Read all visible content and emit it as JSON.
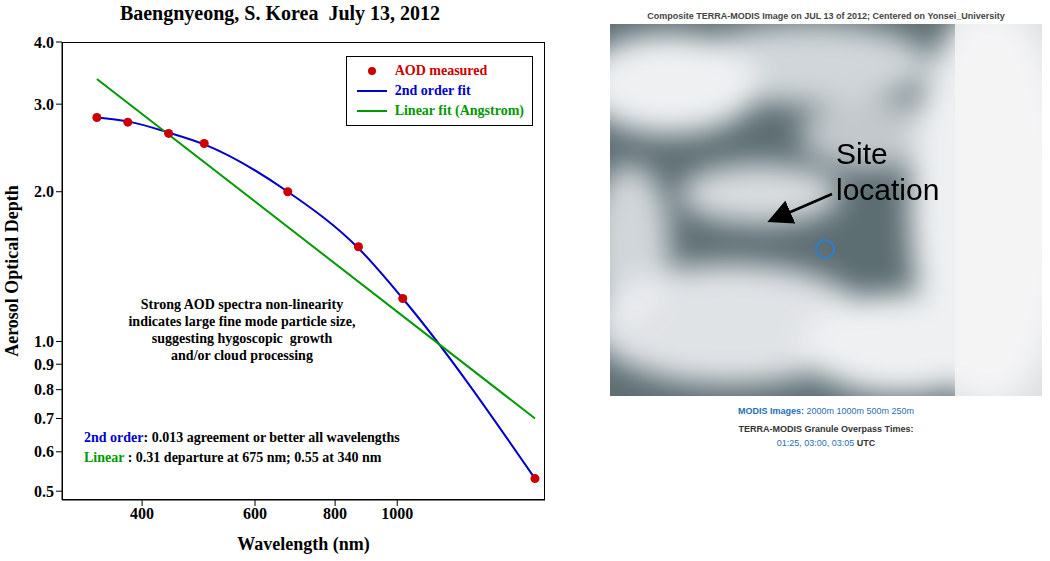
{
  "chart_data": {
    "type": "line",
    "title": "Baengnyeong, S. Korea  July 13, 2012",
    "x_label": "Wavelength (nm)",
    "y_label": "Aerosol Optical Depth",
    "log": true,
    "grid": false,
    "legend": "upper right",
    "x": [
      340,
      380,
      440,
      500,
      675,
      870,
      1020,
      1640
    ],
    "series": [
      {
        "name": "AOD measured",
        "type": "scatter",
        "color": "#cc0000",
        "marker": "circle",
        "values": [
          2.82,
          2.76,
          2.62,
          2.5,
          2.0,
          1.55,
          1.22,
          0.53
        ]
      },
      {
        "name": "2nd order fit",
        "type": "line",
        "color": "#0000cc",
        "marker": "none",
        "line_style": "smooth",
        "values": [
          2.82,
          2.77,
          2.63,
          2.49,
          2.0,
          1.54,
          1.22,
          0.53
        ]
      },
      {
        "name": "Linear fit (Angstrom)",
        "type": "line",
        "color": "#009900",
        "marker": "none",
        "line_style": "straight",
        "values": [
          3.37,
          null,
          null,
          null,
          null,
          null,
          null,
          0.7
        ]
      }
    ],
    "xlim": [
      300,
      1700
    ],
    "xticks": [
      400,
      600,
      800,
      1000
    ],
    "ylim": [
      0.48,
      4
    ],
    "yticks": [
      0.5,
      0.6,
      0.7,
      0.8,
      0.9,
      {
        "value": 1,
        "label": "1.0"
      },
      {
        "value": 2,
        "label": "2.0"
      },
      {
        "value": 3,
        "label": "3.0"
      },
      {
        "value": 4,
        "label": "4.0"
      }
    ],
    "annotations": {
      "note_lines": [
        "Strong AOD spectra non-linearity",
        "indicates large fine mode particle size,",
        "suggesting hygoscopic  growth",
        "and/or cloud processing"
      ],
      "fit_notes": [
        {
          "label": "2nd order",
          "text": ": 0.013 agreement or better all wavelengths",
          "color": "#0000cc"
        },
        {
          "label": "Linear",
          "text": " : 0.31 departure at 675 nm; 0.55 at 340 nm",
          "color": "#009900"
        }
      ]
    }
  },
  "satellite_panel": {
    "title": "Composite TERRA-MODIS Image on JUL 13 of 2012; Centered on Yonsei_University",
    "site_label": [
      "Site",
      "location"
    ],
    "images_label": "MODIS Images:",
    "resolutions": "2000m 1000m 500m 250m",
    "overpass_title": "TERRA-MODIS Granule Overpass Times:",
    "overpass_times": "01:25, 03:00, 03:05",
    "overpass_unit": "UTC"
  }
}
